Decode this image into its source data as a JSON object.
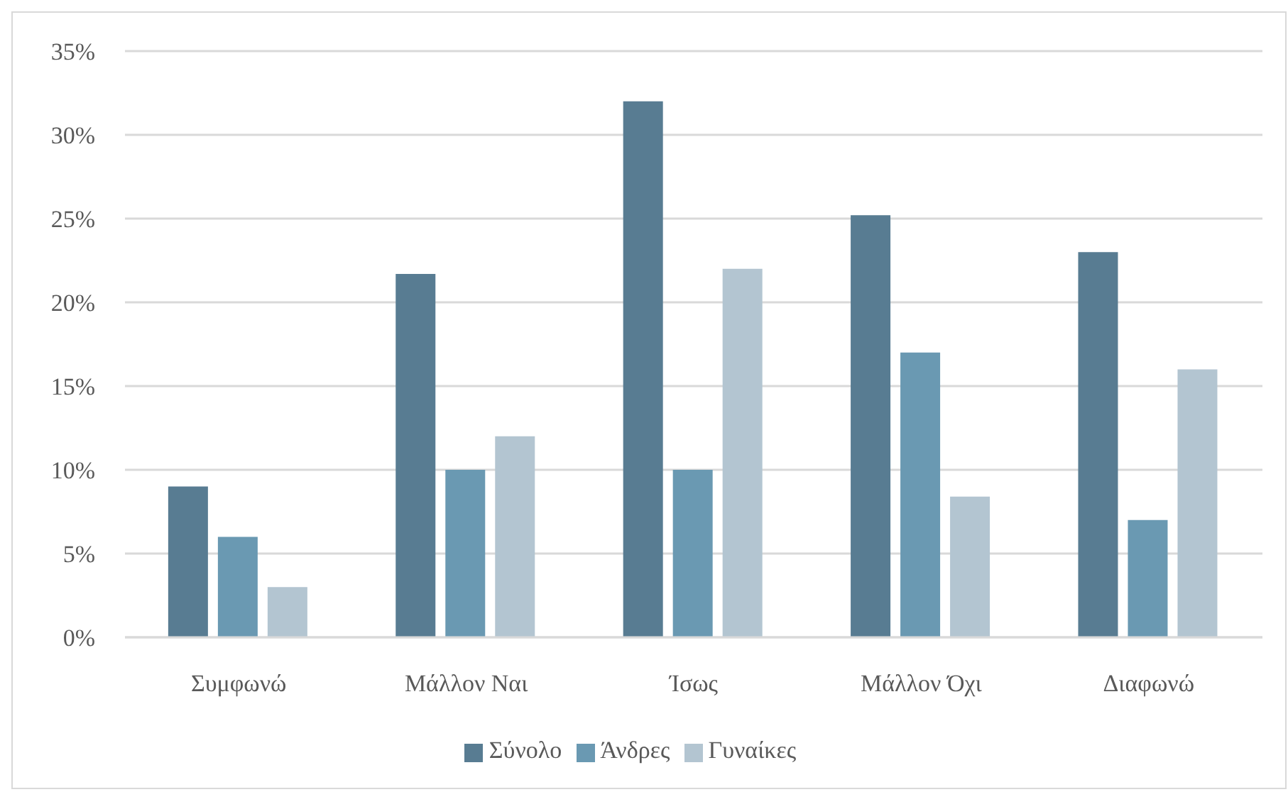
{
  "chart_data": {
    "type": "bar",
    "categories": [
      "Συμφωνώ",
      "Μάλλον Ναι",
      "Ίσως",
      "Μάλλον Όχι",
      "Διαφωνώ"
    ],
    "series": [
      {
        "name": "Σύνολο",
        "color": "#587c92",
        "values": [
          9,
          21.7,
          32,
          25.2,
          23
        ]
      },
      {
        "name": "Άνδρες",
        "color": "#6a99b2",
        "values": [
          6,
          10,
          10,
          17,
          7
        ]
      },
      {
        "name": "Γυναίκες",
        "color": "#b3c5d1",
        "values": [
          3,
          12,
          22,
          8.4,
          16
        ]
      }
    ],
    "ylim": [
      0,
      35
    ],
    "yticks": [
      {
        "value": 0,
        "label": "0%"
      },
      {
        "value": 5,
        "label": "5%"
      },
      {
        "value": 10,
        "label": "10%"
      },
      {
        "value": 15,
        "label": "15%"
      },
      {
        "value": 20,
        "label": "20%"
      },
      {
        "value": 25,
        "label": "25%"
      },
      {
        "value": 30,
        "label": "30%"
      },
      {
        "value": 35,
        "label": "35%"
      }
    ],
    "grid": "y",
    "legend": "bottom"
  }
}
